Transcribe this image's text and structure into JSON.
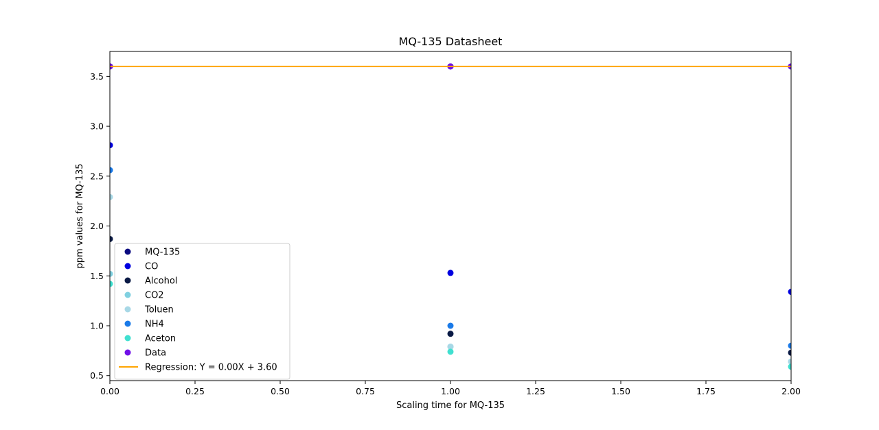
{
  "chart_data": {
    "type": "scatter",
    "title": "MQ-135 Datasheet",
    "xlabel": "Scaling time for MQ-135",
    "ylabel": "ppm values for MQ-135",
    "xlim": [
      0,
      2
    ],
    "ylim": [
      0.45,
      3.75
    ],
    "x_ticks": [
      0,
      0.25,
      0.5,
      0.75,
      1.0,
      1.25,
      1.5,
      1.75,
      2.0
    ],
    "x_tick_labels": [
      "0.00",
      "0.25",
      "0.50",
      "0.75",
      "1.00",
      "1.25",
      "1.50",
      "1.75",
      "2.00"
    ],
    "y_ticks": [
      0.5,
      1.0,
      1.5,
      2.0,
      2.5,
      3.0,
      3.5
    ],
    "y_tick_labels": [
      "0.5",
      "1.0",
      "1.5",
      "2.0",
      "2.5",
      "3.0",
      "3.5"
    ],
    "grid": false,
    "legend_position": "lower-left",
    "series": [
      {
        "name": "MQ-135",
        "color": "#0a0a80",
        "x": [
          0,
          1,
          2
        ],
        "y": [
          3.6,
          3.6,
          3.6
        ]
      },
      {
        "name": "CO",
        "color": "#0000e0",
        "x": [
          0,
          1,
          2
        ],
        "y": [
          2.81,
          1.53,
          1.34
        ]
      },
      {
        "name": "Alcohol",
        "color": "#0a1a45",
        "x": [
          0,
          1,
          2
        ],
        "y": [
          1.87,
          0.92,
          0.73
        ]
      },
      {
        "name": "CO2",
        "color": "#80d0e0",
        "x": [
          0,
          1,
          2
        ],
        "y": [
          1.52,
          0.79,
          0.64
        ]
      },
      {
        "name": "Toluen",
        "color": "#a8d8e6",
        "x": [
          0,
          1,
          2
        ],
        "y": [
          2.29,
          0.79,
          0.64
        ]
      },
      {
        "name": "NH4",
        "color": "#1a7ae8",
        "x": [
          0,
          1,
          2
        ],
        "y": [
          2.56,
          1.0,
          0.8
        ]
      },
      {
        "name": "Aceton",
        "color": "#40e0d0",
        "x": [
          0,
          1,
          2
        ],
        "y": [
          1.42,
          0.74,
          0.59
        ]
      },
      {
        "name": "Data",
        "color": "#7010e8",
        "x": [
          0,
          1,
          2
        ],
        "y": [
          3.6,
          3.6,
          3.6
        ]
      }
    ],
    "regression": {
      "label": "Regression: Y = 0.00X + 3.60",
      "color": "#ffa500",
      "x": [
        0,
        2
      ],
      "y": [
        3.6,
        3.6
      ]
    }
  }
}
